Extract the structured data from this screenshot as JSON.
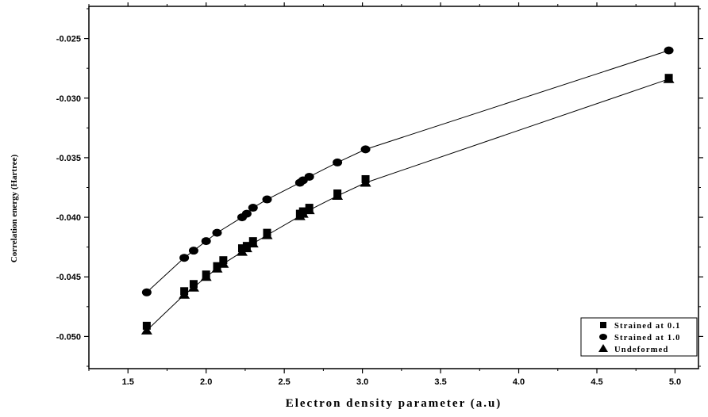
{
  "chart_data": {
    "type": "scatter",
    "title": "",
    "xlabel": "Electron density parameter (a.u)",
    "ylabel": "Correlation energy (Hartree)",
    "xlim": [
      1.25,
      5.15
    ],
    "ylim": [
      -0.0527,
      -0.0223
    ],
    "x_ticks": [
      1.5,
      2.0,
      2.5,
      3.0,
      3.5,
      4.0,
      4.5,
      5.0
    ],
    "x_tick_labels": [
      "1.5",
      "2.0",
      "2.5",
      "3.0",
      "3.5",
      "4.0",
      "4.5",
      "5.0"
    ],
    "y_ticks": [
      -0.05,
      -0.045,
      -0.04,
      -0.035,
      -0.03,
      -0.025
    ],
    "y_tick_labels": [
      "-0.050",
      "-0.045",
      "-0.040",
      "-0.035",
      "-0.030",
      "-0.025"
    ],
    "grid": false,
    "legend_position": "bottom-right",
    "series": [
      {
        "name": "Strained at 0.1",
        "marker": "square",
        "x": [
          1.62,
          1.86,
          1.92,
          2.0,
          2.07,
          2.11,
          2.23,
          2.26,
          2.3,
          2.39,
          2.6,
          2.62,
          2.66,
          2.84,
          3.02,
          4.96
        ],
        "y": [
          -0.0491,
          -0.0462,
          -0.0456,
          -0.0448,
          -0.0441,
          -0.0436,
          -0.0426,
          -0.0424,
          -0.042,
          -0.0413,
          -0.0397,
          -0.0395,
          -0.0392,
          -0.038,
          -0.0368,
          -0.0283
        ]
      },
      {
        "name": "Strained at 1.0",
        "marker": "circle",
        "x": [
          1.62,
          1.86,
          1.92,
          2.0,
          2.07,
          2.23,
          2.26,
          2.3,
          2.39,
          2.6,
          2.62,
          2.66,
          2.84,
          3.02,
          4.96
        ],
        "y": [
          -0.0463,
          -0.0434,
          -0.0428,
          -0.042,
          -0.0413,
          -0.04,
          -0.0397,
          -0.0392,
          -0.0385,
          -0.0371,
          -0.0369,
          -0.0366,
          -0.0354,
          -0.0343,
          -0.026
        ]
      },
      {
        "name": "Undeformed",
        "marker": "triangle",
        "x": [
          1.62,
          1.86,
          1.92,
          2.0,
          2.07,
          2.11,
          2.23,
          2.26,
          2.3,
          2.39,
          2.6,
          2.62,
          2.66,
          2.84,
          3.02,
          4.96
        ],
        "y": [
          -0.0495,
          -0.0465,
          -0.0459,
          -0.045,
          -0.0443,
          -0.0439,
          -0.0429,
          -0.0426,
          -0.0422,
          -0.0415,
          -0.0399,
          -0.0397,
          -0.0394,
          -0.0382,
          -0.0371,
          -0.0284
        ]
      }
    ],
    "fit_lines": [
      {
        "x": [
          1.62,
          1.86,
          1.92,
          2.0,
          2.07,
          2.23,
          2.26,
          2.3,
          2.39,
          2.6,
          2.62,
          2.66,
          2.84,
          3.02,
          4.96
        ],
        "y": [
          -0.0463,
          -0.0434,
          -0.0428,
          -0.042,
          -0.0413,
          -0.04,
          -0.0397,
          -0.0392,
          -0.0385,
          -0.0371,
          -0.0369,
          -0.0366,
          -0.0354,
          -0.0343,
          -0.026
        ]
      },
      {
        "x": [
          1.62,
          1.86,
          1.92,
          2.0,
          2.07,
          2.11,
          2.23,
          2.26,
          2.3,
          2.39,
          2.6,
          2.62,
          2.66,
          2.84,
          3.02,
          4.96
        ],
        "y": [
          -0.0495,
          -0.0465,
          -0.0459,
          -0.045,
          -0.0443,
          -0.0439,
          -0.0429,
          -0.0426,
          -0.0422,
          -0.0415,
          -0.0399,
          -0.0397,
          -0.0394,
          -0.0382,
          -0.0371,
          -0.0284
        ]
      }
    ]
  }
}
